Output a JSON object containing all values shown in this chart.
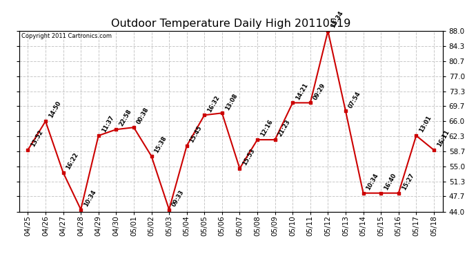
{
  "title": "Outdoor Temperature Daily High 20110519",
  "copyright": "Copyright 2011 Cartronics.com",
  "dates": [
    "04/25",
    "04/26",
    "04/27",
    "04/28",
    "04/29",
    "04/30",
    "05/01",
    "05/02",
    "05/03",
    "05/04",
    "05/05",
    "05/06",
    "05/07",
    "05/08",
    "05/09",
    "05/10",
    "05/11",
    "05/12",
    "05/13",
    "05/14",
    "05/15",
    "05/16",
    "05/17",
    "05/18"
  ],
  "values": [
    59.0,
    66.0,
    53.5,
    44.5,
    62.5,
    64.0,
    64.5,
    57.5,
    44.5,
    60.0,
    67.5,
    68.0,
    54.5,
    61.5,
    61.5,
    70.5,
    70.5,
    88.0,
    68.5,
    48.5,
    48.5,
    48.5,
    62.5,
    59.0
  ],
  "times": [
    "13:52",
    "14:50",
    "16:22",
    "10:34",
    "11:37",
    "22:58",
    "00:38",
    "15:38",
    "09:33",
    "15:45",
    "16:32",
    "13:08",
    "15:53",
    "12:16",
    "21:23",
    "14:21",
    "09:29",
    "15:34",
    "07:54",
    "10:34",
    "16:40",
    "15:27",
    "13:01",
    "16:11"
  ],
  "ylim_min": 44.0,
  "ylim_max": 88.0,
  "yticks": [
    44.0,
    47.7,
    51.3,
    55.0,
    58.7,
    62.3,
    66.0,
    69.7,
    73.3,
    77.0,
    80.7,
    84.3,
    88.0
  ],
  "line_color": "#cc0000",
  "marker_color": "#cc0000",
  "bg_color": "#ffffff",
  "grid_color": "#c8c8c8",
  "title_fontsize": 11.5,
  "label_fontsize": 6.0,
  "tick_fontsize": 7.5,
  "copyright_fontsize": 6.0
}
